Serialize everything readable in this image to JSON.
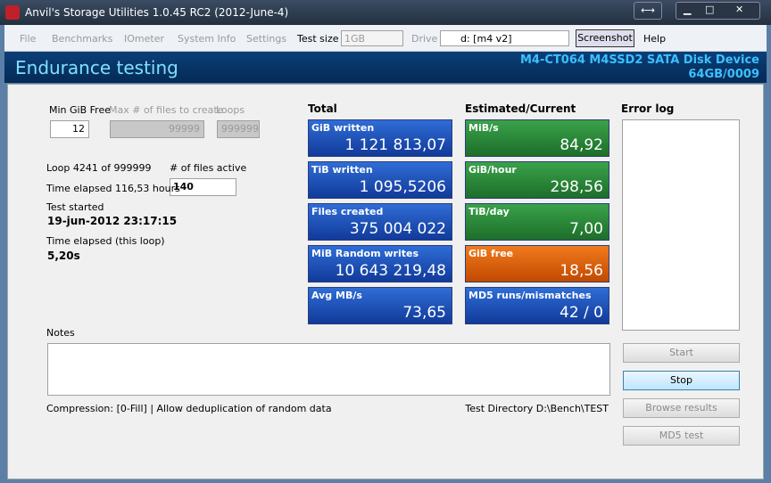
{
  "window": {
    "title": "Anvil's Storage Utilities 1.0.45 RC2 (2012-June-4)"
  },
  "menu": {
    "items": [
      "File",
      "Benchmarks",
      "IOmeter",
      "System Info",
      "Settings"
    ],
    "test_size_label": "Test size",
    "test_size": "1GB",
    "drive_label": "Drive",
    "drive": "d: [m4 v2]",
    "screenshot": "Screenshot",
    "help": "Help"
  },
  "header": {
    "title": "Endurance testing",
    "device": "M4-CT064 M4SSD2 SATA Disk Device",
    "firmware": "64GB/0009"
  },
  "settings": {
    "min_free_label": "Min GiB Free",
    "min_free": "12",
    "max_files_label": "Max # of files to create",
    "max_files": "99999",
    "loops_label": "Loops",
    "loops": "999999"
  },
  "status": {
    "loop": "Loop 4241 of 999999",
    "files_active_label": "# of files active",
    "files_active": "140",
    "time_elapsed": "Time elapsed 116,53 hours",
    "test_started_label": "Test started",
    "test_started": "19-jun-2012 23:17:15",
    "loop_elapsed_label": "Time elapsed (this loop)",
    "loop_elapsed": "5,20s"
  },
  "total": {
    "heading": "Total",
    "tiles": [
      {
        "label": "GiB written",
        "value": "1 121 813,07"
      },
      {
        "label": "TiB written",
        "value": "1 095,5206"
      },
      {
        "label": "Files created",
        "value": "375 004 022"
      },
      {
        "label": "MiB Random writes",
        "value": "10 643 219,48"
      },
      {
        "label": "Avg MB/s",
        "value": "73,65"
      }
    ]
  },
  "current": {
    "heading": "Estimated/Current",
    "tiles": [
      {
        "label": "MiB/s",
        "value": "84,92"
      },
      {
        "label": "GiB/hour",
        "value": "298,56"
      },
      {
        "label": "TiB/day",
        "value": "7,00"
      },
      {
        "label": "GiB free",
        "value": "18,56"
      },
      {
        "label": "MD5 runs/mismatches",
        "value": "42 / 0"
      }
    ]
  },
  "error_log": {
    "heading": "Error log"
  },
  "notes": {
    "label": "Notes"
  },
  "footer": {
    "compression": "Compression: [0-Fill] | Allow deduplication of random data",
    "directory": "Test Directory D:\\Bench\\TEST"
  },
  "buttons": [
    "Start",
    "Stop",
    "Browse results",
    "MD5 test"
  ]
}
